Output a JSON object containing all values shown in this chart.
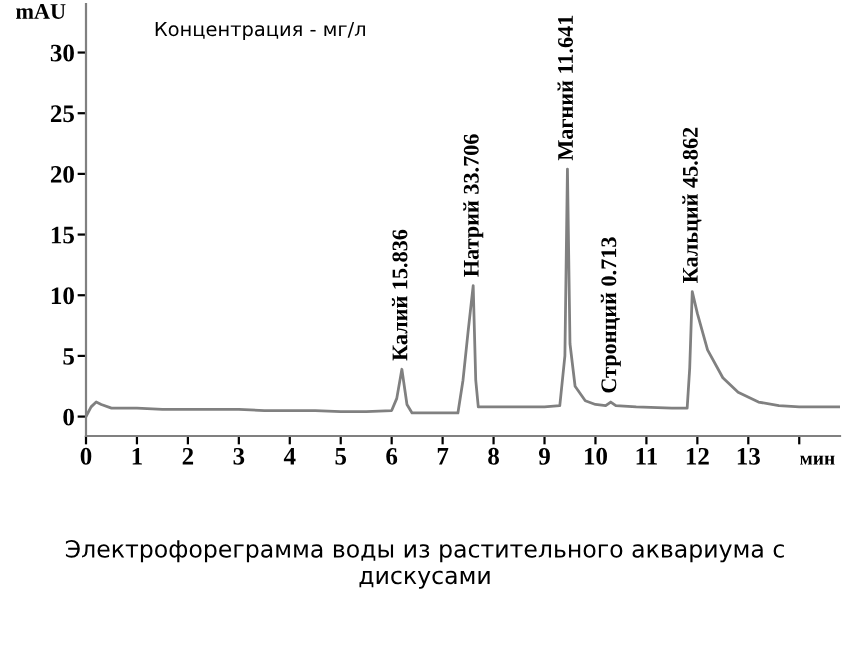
{
  "chart_data": {
    "type": "line",
    "ylabel": "mAU",
    "xlabel": "мин",
    "x": [
      0,
      0.1,
      0.2,
      0.3,
      0.5,
      1,
      1.5,
      2,
      2.5,
      3,
      3.5,
      4,
      4.5,
      5,
      5.5,
      6.0,
      6.1,
      6.2,
      6.3,
      6.4,
      7,
      7.3,
      7.4,
      7.5,
      7.6,
      7.65,
      7.7,
      8,
      8.5,
      9,
      9.3,
      9.4,
      9.45,
      9.5,
      9.6,
      9.8,
      10,
      10.2,
      10.3,
      10.4,
      10.8,
      11.5,
      11.8,
      11.85,
      11.9,
      12.0,
      12.2,
      12.5,
      12.8,
      13.2,
      13.6,
      14,
      14.8
    ],
    "series": [
      {
        "color": "#808080",
        "values": [
          0,
          0.8,
          1.2,
          1.0,
          0.7,
          0.7,
          0.6,
          0.6,
          0.6,
          0.6,
          0.5,
          0.5,
          0.5,
          0.4,
          0.4,
          0.5,
          1.5,
          3.9,
          1.0,
          0.3,
          0.3,
          0.3,
          3,
          7,
          10.8,
          3,
          0.8,
          0.8,
          0.8,
          0.8,
          0.9,
          5,
          20.4,
          6,
          2.5,
          1.3,
          1.0,
          0.9,
          1.2,
          0.9,
          0.8,
          0.7,
          0.7,
          4,
          10.3,
          8.5,
          5.5,
          3.2,
          2.0,
          1.2,
          0.9,
          0.8,
          0.8
        ]
      }
    ],
    "xlim": [
      0,
      14.8
    ],
    "ylim": [
      -1.6,
      34
    ],
    "xticks": [
      0,
      1,
      2,
      3,
      4,
      5,
      6,
      7,
      8,
      9,
      10,
      11,
      12,
      13,
      {
        "value": 14,
        "label": null
      }
    ],
    "yticks": [
      0,
      5,
      10,
      15,
      20,
      25,
      30
    ],
    "grid": false,
    "marker": "none",
    "line_style": "solid",
    "annotations": [
      {
        "text": "Калий 15.836",
        "x": 6.2,
        "y": 3.9
      },
      {
        "text": "Натрий 33.706",
        "x": 7.6,
        "y": 10.8
      },
      {
        "text": "Магний 11.641",
        "x": 9.45,
        "y": 20.4
      },
      {
        "text": "Стронций 0.713",
        "x": 10.3,
        "y": 1.2
      },
      {
        "text": "Кальций 45.862",
        "x": 11.9,
        "y": 10.3
      },
      "Концентрация - мг/л",
      "Электрофореграмма воды из растительного аквариума с дискусами"
    ]
  }
}
